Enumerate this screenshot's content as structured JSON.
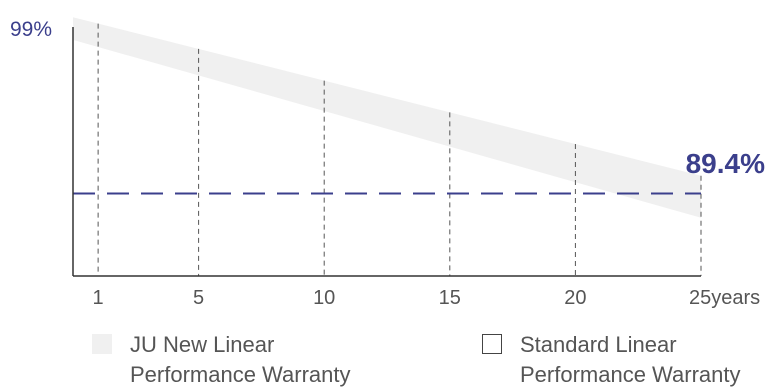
{
  "chart_data": {
    "type": "area",
    "y_tick_label": "99%",
    "end_label": "89.4%",
    "x_ticks": [
      {
        "value": 1,
        "label": "1"
      },
      {
        "value": 5,
        "label": "5"
      },
      {
        "value": 10,
        "label": "10"
      },
      {
        "value": 15,
        "label": "15"
      },
      {
        "value": 20,
        "label": "20"
      },
      {
        "value": 25,
        "label": "25years"
      }
    ],
    "xlim": [
      0,
      25
    ],
    "ylim": [
      84.3,
      100.5
    ],
    "series": [
      {
        "name": "JU New Linear Performance Warranty",
        "style": "band",
        "x": [
          0,
          25
        ],
        "upper": [
          100.3,
          90.5
        ],
        "lower": [
          98.9,
          87.9
        ]
      },
      {
        "name": "Standard Linear Performance Warranty",
        "style": "reference-line",
        "y": 89.4
      }
    ],
    "colors": {
      "band": "#f0f0f0",
      "reference": "#3b3f8c",
      "axis": "#333333",
      "text": "#555555"
    }
  },
  "legend": [
    {
      "label_line1": "JU New Linear",
      "label_line2": "Performance Warranty"
    },
    {
      "label_line1": "Standard Linear",
      "label_line2": "Performance Warranty"
    }
  ]
}
